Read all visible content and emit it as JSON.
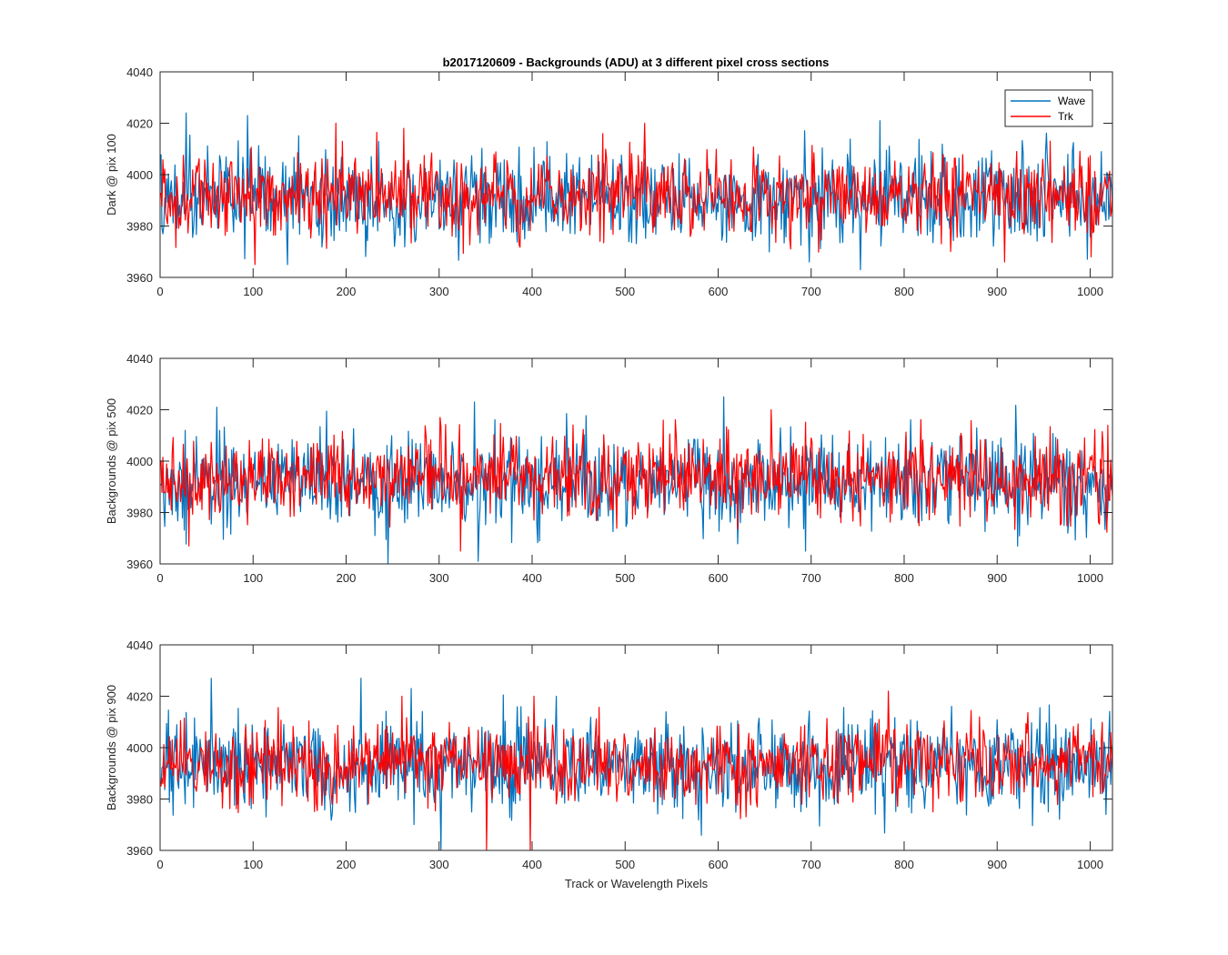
{
  "figure_title": "b2017120609 - Backgrounds (ADU) at 3 different pixel cross sections",
  "chart_data": [
    {
      "type": "line",
      "title": "b2017120609 - Backgrounds (ADU) at 3 different pixel cross sections",
      "ylabel": "Dark @ pix 100",
      "xlabel": "",
      "xlim": [
        0,
        1024
      ],
      "ylim": [
        3960,
        4040
      ],
      "xticks": [
        0,
        100,
        200,
        300,
        400,
        500,
        600,
        700,
        800,
        900,
        1000
      ],
      "yticks": [
        3960,
        3980,
        4000,
        4020,
        4040
      ],
      "legend": {
        "position": "top-right",
        "entries": [
          "Wave",
          "Trk"
        ]
      },
      "series": [
        {
          "name": "Wave",
          "color": "#0072bd",
          "n_points": 1024,
          "mean": 3991,
          "sd": 9,
          "min": 3963,
          "max": 4024,
          "notable": [
            [
              27,
              4024
            ],
            [
              93,
              4023
            ],
            [
              752,
              3963
            ],
            [
              773,
              4021
            ],
            [
              136,
              3965
            ]
          ]
        },
        {
          "name": "Trk",
          "color": "#ff0000",
          "n_points": 1024,
          "mean": 3992,
          "sd": 8,
          "min": 3965,
          "max": 4020,
          "notable": [
            [
              101,
              3965
            ],
            [
              188,
              4020
            ],
            [
              907,
              3966
            ],
            [
              261,
              4018
            ],
            [
              520,
              4020
            ]
          ]
        }
      ]
    },
    {
      "type": "line",
      "ylabel": "Backgrounds @ pix 500",
      "xlabel": "",
      "xlim": [
        0,
        1024
      ],
      "ylim": [
        3960,
        4040
      ],
      "xticks": [
        0,
        100,
        200,
        300,
        400,
        500,
        600,
        700,
        800,
        900,
        1000
      ],
      "yticks": [
        3960,
        3980,
        4000,
        4020,
        4040
      ],
      "series": [
        {
          "name": "Wave",
          "color": "#0072bd",
          "n_points": 1024,
          "mean": 3992,
          "sd": 9,
          "min": 3960,
          "max": 4025,
          "notable": [
            [
              60,
              4021
            ],
            [
              337,
              4023
            ],
            [
              605,
              4025
            ],
            [
              244,
              3960
            ],
            [
              341,
              3961
            ],
            [
              693,
              3965
            ]
          ]
        },
        {
          "name": "Trk",
          "color": "#ff0000",
          "n_points": 1024,
          "mean": 3993,
          "sd": 8,
          "min": 3965,
          "max": 4020,
          "notable": [
            [
              656,
              4020
            ],
            [
              322,
              3965
            ],
            [
              30,
              3967
            ],
            [
              300,
              4017
            ]
          ]
        }
      ]
    },
    {
      "type": "line",
      "ylabel": "Backgrounds @ pix 900",
      "xlabel": "Track or Wavelength Pixels",
      "xlim": [
        0,
        1024
      ],
      "ylim": [
        3960,
        4040
      ],
      "xticks": [
        0,
        100,
        200,
        300,
        400,
        500,
        600,
        700,
        800,
        900,
        1000
      ],
      "yticks": [
        3960,
        3980,
        4000,
        4020,
        4040
      ],
      "series": [
        {
          "name": "Wave",
          "color": "#0072bd",
          "n_points": 1024,
          "mean": 3993,
          "sd": 9,
          "min": 3960,
          "max": 4027,
          "notable": [
            [
              54,
              4027
            ],
            [
              215,
              4027
            ],
            [
              269,
              4023
            ],
            [
              301,
              3960
            ],
            [
              425,
              4020
            ]
          ]
        },
        {
          "name": "Trk",
          "color": "#ff0000",
          "n_points": 1024,
          "mean": 3994,
          "sd": 8,
          "min": 3960,
          "max": 4022,
          "notable": [
            [
              350,
              3960
            ],
            [
              397,
              3960
            ],
            [
              782,
              4022
            ],
            [
              259,
              4020
            ],
            [
              401,
              4020
            ]
          ]
        }
      ]
    }
  ]
}
